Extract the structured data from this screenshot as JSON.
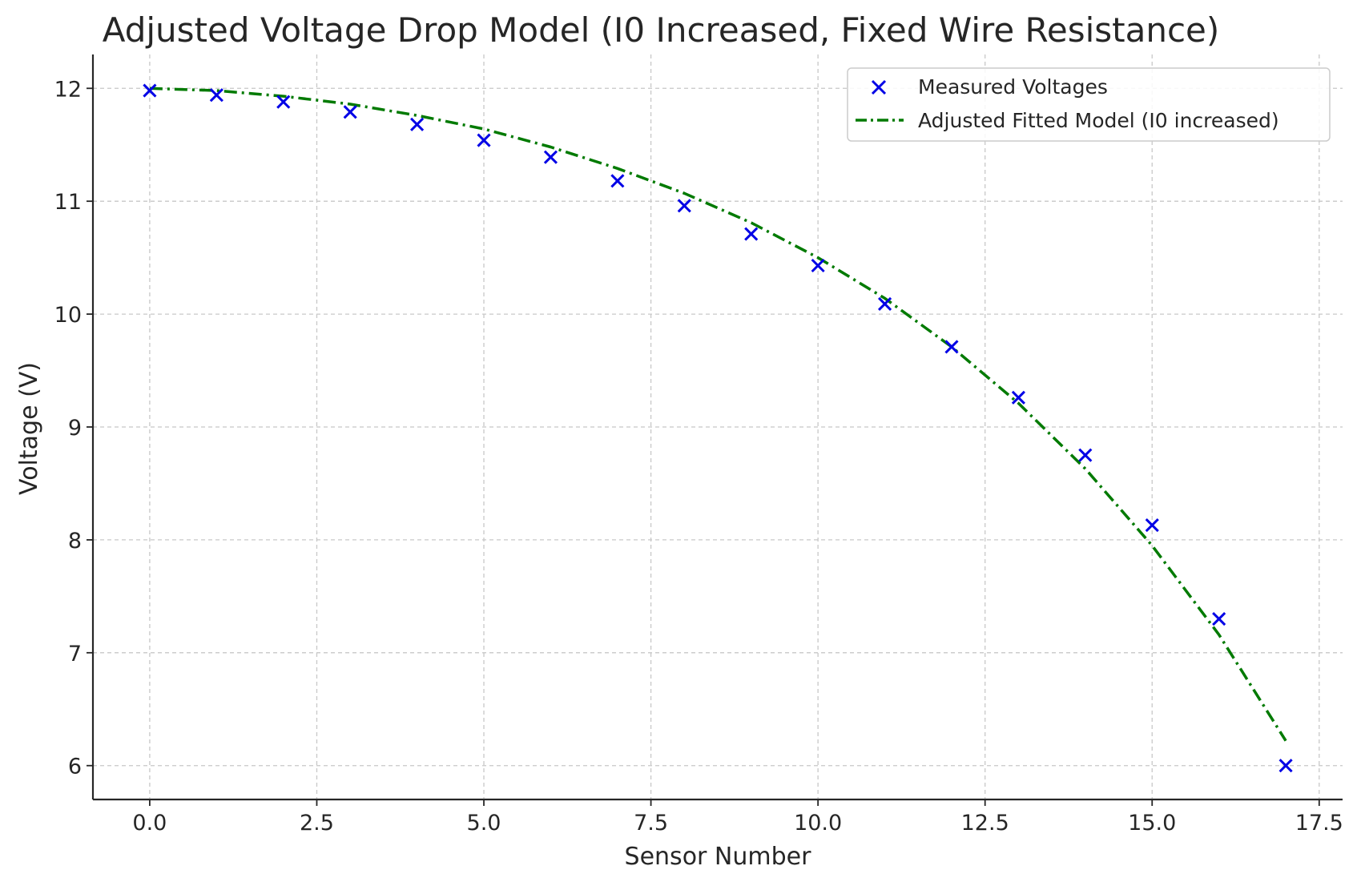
{
  "chart_data": {
    "type": "line",
    "title": "Adjusted Voltage Drop Model (I0 Increased, Fixed Wire Resistance)",
    "xlabel": "Sensor Number",
    "ylabel": "Voltage (V)",
    "xlim": [
      -0.85,
      17.85
    ],
    "ylim": [
      5.7,
      12.3
    ],
    "xticks": [
      0.0,
      2.5,
      5.0,
      7.5,
      10.0,
      12.5,
      15.0,
      17.5
    ],
    "xtick_labels": [
      "0.0",
      "2.5",
      "5.0",
      "7.5",
      "10.0",
      "12.5",
      "15.0",
      "17.5"
    ],
    "yticks": [
      6,
      7,
      8,
      9,
      10,
      11,
      12
    ],
    "ytick_labels": [
      "6",
      "7",
      "8",
      "9",
      "10",
      "11",
      "12"
    ],
    "grid": true,
    "legend_position": "top-right",
    "series": [
      {
        "name": "Measured Voltages",
        "kind": "scatter",
        "marker": "x",
        "color": "#0000e6",
        "x": [
          0,
          1,
          2,
          3,
          4,
          5,
          6,
          7,
          8,
          9,
          10,
          11,
          12,
          13,
          14,
          15,
          16,
          17
        ],
        "y": [
          11.98,
          11.94,
          11.88,
          11.79,
          11.68,
          11.54,
          11.39,
          11.18,
          10.96,
          10.71,
          10.43,
          10.09,
          9.71,
          9.26,
          8.75,
          8.13,
          7.3,
          6.0
        ]
      },
      {
        "name": "Adjusted Fitted Model (I0 increased)",
        "kind": "line",
        "style": "dash-dot",
        "color": "#007a00",
        "x": [
          0,
          1,
          2,
          3,
          4,
          5,
          6,
          7,
          8,
          9,
          10,
          11,
          12,
          13,
          14,
          15,
          16,
          17
        ],
        "y": [
          12.0,
          11.98,
          11.93,
          11.86,
          11.76,
          11.64,
          11.48,
          11.29,
          11.07,
          10.81,
          10.5,
          10.14,
          9.71,
          9.21,
          8.63,
          7.95,
          7.16,
          6.22
        ]
      }
    ]
  }
}
